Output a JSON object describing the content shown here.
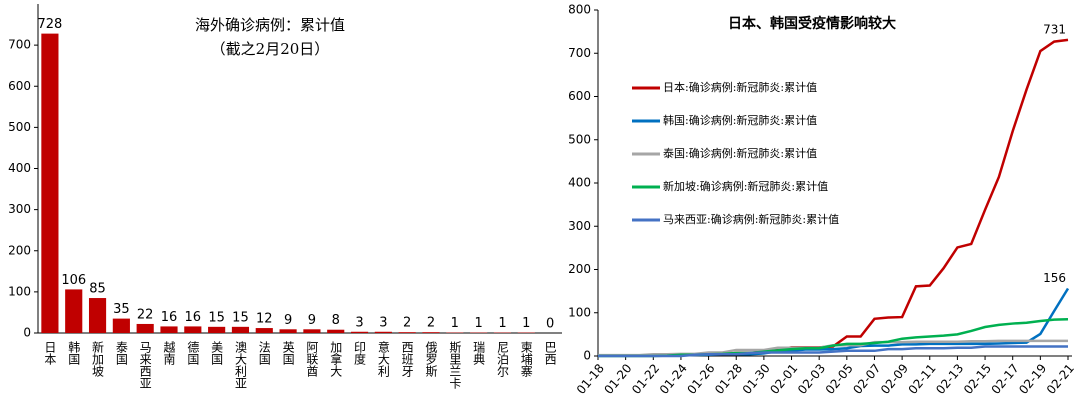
{
  "chart_data": [
    {
      "type": "bar",
      "title": "海外确诊病例：累计值",
      "subtitle": "（截之2月20日）",
      "categories": [
        "日本",
        "韩国",
        "新加坡",
        "泰国",
        "马来西亚",
        "越南",
        "德国",
        "美国",
        "澳大利亚",
        "法国",
        "英国",
        "阿联酋",
        "加拿大",
        "印度",
        "意大利",
        "西班牙",
        "俄罗斯",
        "斯里兰卡",
        "瑞典",
        "尼泊尔",
        "柬埔寨",
        "巴西"
      ],
      "values": [
        728,
        106,
        85,
        35,
        22,
        16,
        16,
        15,
        15,
        12,
        9,
        9,
        8,
        3,
        3,
        2,
        2,
        1,
        1,
        1,
        1,
        0
      ],
      "color": "#c00000",
      "ylim": [
        0,
        800
      ],
      "yticks": [
        0,
        100,
        200,
        300,
        400,
        500,
        600,
        700
      ],
      "grid": false
    },
    {
      "type": "line",
      "title": "日本、韩国受疫情影响较大",
      "categories": [
        "01-18",
        null,
        "01-20",
        null,
        "01-22",
        null,
        "01-24",
        null,
        "01-26",
        null,
        "01-28",
        null,
        "01-30",
        null,
        "02-01",
        null,
        "02-03",
        null,
        "02-05",
        null,
        "02-07",
        null,
        "02-09",
        null,
        "02-11",
        null,
        "02-13",
        null,
        "02-15",
        null,
        "02-17",
        null,
        "02-19",
        null,
        "02-21"
      ],
      "series": [
        {
          "name": "日本:确诊病例:新冠肺炎:累计值",
          "color": "#c00000",
          "values": [
            1,
            1,
            1,
            1,
            1,
            1,
            2,
            2,
            4,
            4,
            7,
            7,
            11,
            15,
            20,
            20,
            20,
            22,
            45,
            45,
            86,
            89,
            90,
            161,
            163,
            203,
            251,
            259,
            338,
            414,
            520,
            616,
            705,
            727,
            731
          ]
        },
        {
          "name": "韩国:确诊病例:新冠肺炎:累计值",
          "color": "#0070c0",
          "values": [
            1,
            1,
            1,
            1,
            1,
            1,
            2,
            2,
            3,
            4,
            4,
            4,
            6,
            11,
            12,
            15,
            15,
            16,
            18,
            23,
            24,
            24,
            27,
            27,
            28,
            28,
            28,
            28,
            28,
            29,
            30,
            31,
            51,
            104,
            156
          ]
        },
        {
          "name": "泰国:确诊病例:新冠肺炎:累计值",
          "color": "#a6a6a6",
          "values": [
            2,
            2,
            2,
            2,
            4,
            4,
            5,
            5,
            8,
            8,
            14,
            14,
            14,
            19,
            19,
            19,
            19,
            25,
            25,
            25,
            32,
            32,
            32,
            33,
            33,
            33,
            33,
            34,
            34,
            35,
            35,
            35,
            35,
            35,
            35
          ]
        },
        {
          "name": "新加坡:确诊病例:新冠肺炎:累计值",
          "color": "#00b050",
          "values": [
            0,
            0,
            0,
            0,
            0,
            1,
            3,
            3,
            4,
            5,
            7,
            7,
            10,
            13,
            16,
            18,
            18,
            24,
            28,
            28,
            30,
            33,
            40,
            43,
            45,
            47,
            50,
            58,
            67,
            72,
            75,
            77,
            81,
            84,
            85
          ]
        },
        {
          "name": "马来西亚:确诊病例:新冠肺炎:累计值",
          "color": "#4472c4",
          "values": [
            0,
            0,
            0,
            0,
            0,
            0,
            0,
            3,
            4,
            4,
            4,
            7,
            8,
            8,
            8,
            8,
            8,
            10,
            12,
            12,
            12,
            16,
            16,
            18,
            18,
            18,
            19,
            19,
            22,
            22,
            22,
            22,
            22,
            22,
            22
          ]
        }
      ],
      "end_labels": [
        0,
        1
      ],
      "ylim": [
        0,
        800
      ],
      "yticks": [
        0,
        100,
        200,
        300,
        400,
        500,
        600,
        700,
        800
      ],
      "grid": false,
      "legend": "upper left"
    }
  ]
}
